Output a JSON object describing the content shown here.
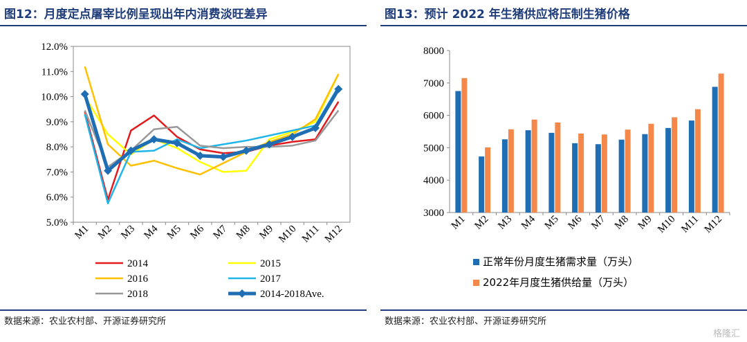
{
  "left": {
    "title": "图12：月度定点屠宰比例呈现出年内消费淡旺差异",
    "source": "数据来源：农业农村部、开源证券研究所"
  },
  "right": {
    "title": "图13：预计 2022 年生猪供应将压制生猪价格",
    "source": "数据来源：农业农村部、开源证券研究所"
  },
  "watermark": "格隆汇",
  "chart_data": [
    {
      "type": "line",
      "categories": [
        "M1",
        "M2",
        "M3",
        "M4",
        "M5",
        "M6",
        "M7",
        "M8",
        "M9",
        "M10",
        "M11",
        "M12"
      ],
      "ylim": [
        5.0,
        12.0
      ],
      "yticks": [
        "5.0%",
        "6.0%",
        "7.0%",
        "8.0%",
        "9.0%",
        "10.0%",
        "11.0%",
        "12.0%"
      ],
      "legend_position": "bottom",
      "series": [
        {
          "name": "2014",
          "color": "#e31a1c",
          "values": [
            9.4,
            5.9,
            8.65,
            9.25,
            8.4,
            7.9,
            7.75,
            7.8,
            8.05,
            8.2,
            8.3,
            9.8
          ]
        },
        {
          "name": "2015",
          "color": "#ffff00",
          "values": [
            10.0,
            8.5,
            7.7,
            8.3,
            7.95,
            7.4,
            7.0,
            7.05,
            8.3,
            8.6,
            9.0,
            10.9
          ]
        },
        {
          "name": "2016",
          "color": "#ffc000",
          "values": [
            11.2,
            8.1,
            7.25,
            7.45,
            7.15,
            6.9,
            7.35,
            7.8,
            8.2,
            8.5,
            9.1,
            10.9
          ]
        },
        {
          "name": "2017",
          "color": "#1fb5e8",
          "values": [
            9.3,
            5.75,
            7.8,
            7.85,
            8.3,
            7.95,
            8.1,
            8.25,
            8.45,
            8.65,
            8.85,
            10.4
          ]
        },
        {
          "name": "2018",
          "color": "#999999",
          "values": [
            9.45,
            7.2,
            7.85,
            8.7,
            8.8,
            8.05,
            7.95,
            8.0,
            8.0,
            8.05,
            8.25,
            9.45
          ]
        },
        {
          "name": "2014-2018Ave.",
          "color": "#1f6eb4",
          "values": [
            10.1,
            7.05,
            7.85,
            8.3,
            8.15,
            7.65,
            7.6,
            7.85,
            8.1,
            8.4,
            8.75,
            10.3
          ]
        }
      ]
    },
    {
      "type": "bar",
      "categories": [
        "M1",
        "M2",
        "M3",
        "M4",
        "M5",
        "M6",
        "M7",
        "M8",
        "M9",
        "M10",
        "M11",
        "M12"
      ],
      "ylim": [
        3000,
        8000
      ],
      "yticks": [
        "3000",
        "4000",
        "5000",
        "6000",
        "7000",
        "8000"
      ],
      "legend_position": "bottom",
      "series": [
        {
          "name": "正常年份月度生猪需求量（万头）",
          "color": "#1f6eb4",
          "values": [
            6750,
            4730,
            5260,
            5540,
            5460,
            5140,
            5110,
            5250,
            5420,
            5610,
            5840,
            6880
          ]
        },
        {
          "name": "2022年月度生猪供给量（万头）",
          "color": "#f4884a",
          "values": [
            7150,
            5010,
            5570,
            5870,
            5780,
            5440,
            5410,
            5560,
            5740,
            5940,
            6190,
            7290
          ]
        }
      ]
    }
  ]
}
